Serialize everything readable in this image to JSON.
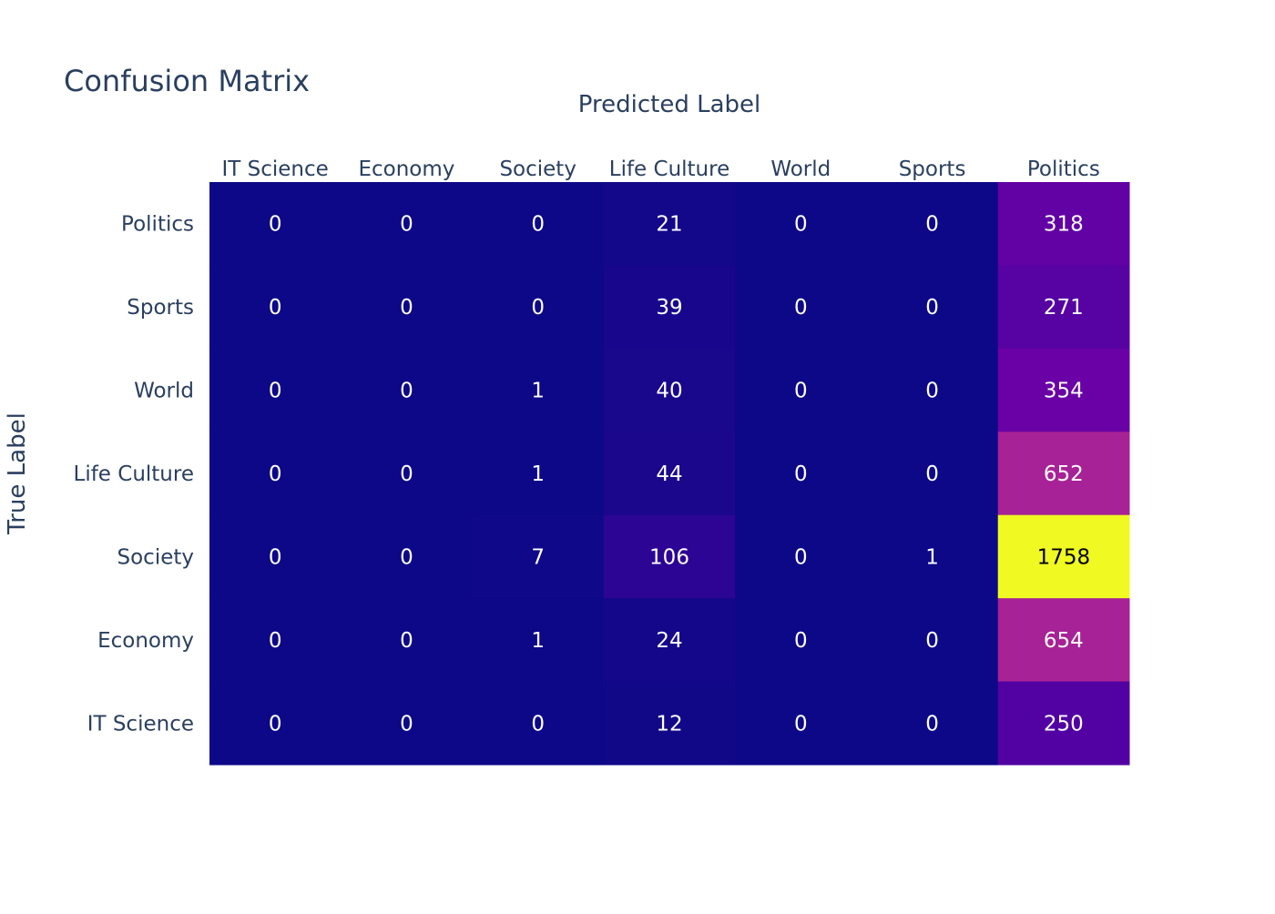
{
  "chart_data": {
    "type": "heatmap",
    "title": "Confusion Matrix",
    "xlabel": "Predicted Label",
    "ylabel": "True Label",
    "x_categories": [
      "IT Science",
      "Economy",
      "Society",
      "Life Culture",
      "World",
      "Sports",
      "Politics"
    ],
    "y_categories": [
      "Politics",
      "Sports",
      "World",
      "Life Culture",
      "Society",
      "Economy",
      "IT Science"
    ],
    "z": [
      [
        0,
        0,
        0,
        21,
        0,
        0,
        318
      ],
      [
        0,
        0,
        0,
        39,
        0,
        0,
        271
      ],
      [
        0,
        0,
        1,
        40,
        0,
        0,
        354
      ],
      [
        0,
        0,
        1,
        44,
        0,
        0,
        652
      ],
      [
        0,
        0,
        7,
        106,
        0,
        1,
        1758
      ],
      [
        0,
        0,
        1,
        24,
        0,
        0,
        654
      ],
      [
        0,
        0,
        0,
        12,
        0,
        0,
        250
      ]
    ],
    "colorscale": "plasma",
    "zmin": 0,
    "zmax": 1758,
    "x_axis_side": "top",
    "showscale": false,
    "colors": {
      "text": "#2a3f5f",
      "background": "#ffffff",
      "cell_text_light": "#ffffff",
      "cell_text_dark": "#000000"
    }
  }
}
